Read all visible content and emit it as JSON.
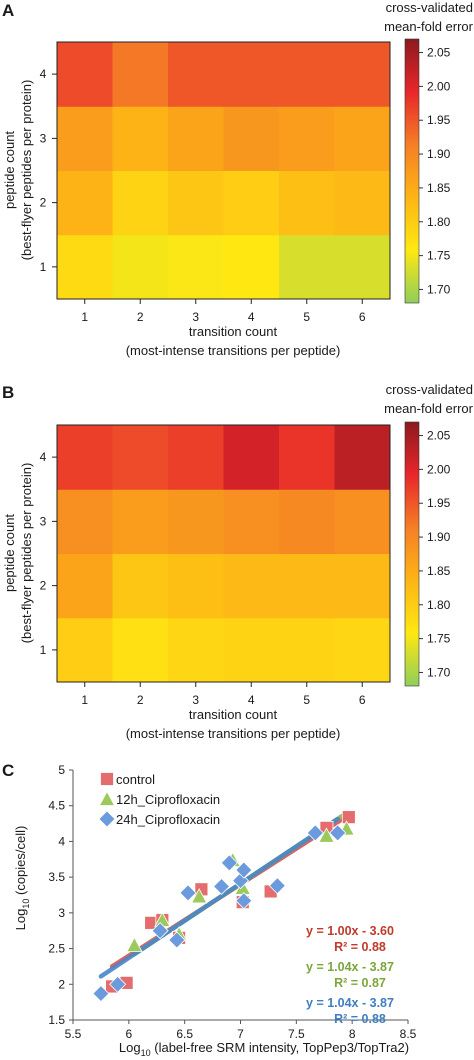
{
  "panels": [
    {
      "letter": "A",
      "chart_data": {
        "type": "heatmap",
        "x_categories": [
          "1",
          "2",
          "3",
          "4",
          "5",
          "6"
        ],
        "y_categories": [
          "1",
          "2",
          "3",
          "4"
        ],
        "values": [
          [
            1.78,
            1.75,
            1.755,
            1.76,
            1.73,
            1.73
          ],
          [
            1.84,
            1.79,
            1.81,
            1.8,
            1.82,
            1.83
          ],
          [
            1.87,
            1.84,
            1.86,
            1.88,
            1.87,
            1.86
          ],
          [
            1.96,
            1.92,
            1.95,
            1.95,
            1.95,
            1.95
          ]
        ],
        "xlabel": "transition count",
        "xlabel2": "(most-intense transitions per peptide)",
        "ylabel": "peptide count",
        "ylabel2": "(best-flyer peptides per protein)",
        "colorbar": {
          "title": "cross-validated",
          "title2": "mean-fold error",
          "ticks": [
            "1.70",
            "1.75",
            "1.80",
            "1.85",
            "1.90",
            "1.95",
            "2.00",
            "2.05"
          ],
          "range": [
            1.68,
            2.07
          ],
          "colors": [
            "#8fce5a",
            "#ffe812",
            "#fdb515",
            "#f57f25",
            "#e8262b",
            "#8c1a1e"
          ]
        }
      }
    },
    {
      "letter": "B",
      "chart_data": {
        "type": "heatmap",
        "x_categories": [
          "1",
          "2",
          "3",
          "4",
          "5",
          "6"
        ],
        "y_categories": [
          "1",
          "2",
          "3",
          "4"
        ],
        "values": [
          [
            1.8,
            1.77,
            1.785,
            1.79,
            1.79,
            1.785
          ],
          [
            1.86,
            1.81,
            1.82,
            1.83,
            1.83,
            1.83
          ],
          [
            1.89,
            1.87,
            1.88,
            1.89,
            1.9,
            1.89
          ],
          [
            1.97,
            1.96,
            1.97,
            2.01,
            1.98,
            2.03
          ]
        ],
        "xlabel": "transition count",
        "xlabel2": "(most-intense transitions per peptide)",
        "ylabel": "peptide count",
        "ylabel2": "(best-flyer peptides per protein)",
        "colorbar": {
          "title": "cross-validated",
          "title2": "mean-fold error",
          "ticks": [
            "1.70",
            "1.75",
            "1.80",
            "1.85",
            "1.90",
            "1.95",
            "2.00",
            "2.05"
          ],
          "range": [
            1.68,
            2.07
          ],
          "colors": [
            "#8fce5a",
            "#ffe812",
            "#fdb515",
            "#f57f25",
            "#e8262b",
            "#8c1a1e"
          ]
        }
      }
    },
    {
      "letter": "C",
      "chart_data": {
        "type": "scatter",
        "xlabel_prefix": "Log",
        "xlabel_sub": "10",
        "xlabel_rest": " (label-free SRM intensity, TopPep3/TopTra2)",
        "ylabel_prefix": "Log",
        "ylabel_sub": "10",
        "ylabel_rest": " (copies/cell)",
        "xlim": [
          5.5,
          8.5
        ],
        "ylim": [
          1.5,
          5
        ],
        "x_ticks": [
          "5.5",
          "6",
          "6.5",
          "7",
          "7.5",
          "8",
          "8.5"
        ],
        "y_ticks": [
          "1.5",
          "2",
          "2.5",
          "3",
          "3.5",
          "4",
          "4.5",
          "5"
        ],
        "series": [
          {
            "name": "control",
            "marker": "square",
            "color": "#e46c6c",
            "line_color": "#d9534f",
            "fit": [
              1.0,
              -3.6
            ],
            "equation": "y = 1.00x - 3.60",
            "r2": "R² = 0.88",
            "text_color": "#c0392b",
            "points": [
              [
                5.85,
                1.97
              ],
              [
                5.98,
                2.02
              ],
              [
                6.2,
                2.86
              ],
              [
                6.3,
                2.9
              ],
              [
                6.45,
                2.65
              ],
              [
                6.65,
                3.33
              ],
              [
                7.02,
                3.15
              ],
              [
                7.27,
                3.3
              ],
              [
                7.77,
                4.19
              ],
              [
                7.97,
                4.34
              ]
            ]
          },
          {
            "name": "12h_Ciprofloxacin",
            "marker": "triangle",
            "color": "#9bc95b",
            "line_color": "#8db552",
            "fit": [
              1.04,
              -3.87
            ],
            "equation": "y = 1.04x - 3.87",
            "r2": "R² = 0.87",
            "text_color": "#7ca63a",
            "points": [
              [
                6.05,
                2.55
              ],
              [
                6.3,
                2.9
              ],
              [
                6.45,
                2.7
              ],
              [
                6.63,
                3.23
              ],
              [
                6.93,
                3.74
              ],
              [
                7.02,
                3.35
              ],
              [
                7.77,
                4.08
              ],
              [
                7.95,
                4.18
              ]
            ]
          },
          {
            "name": "24h_Ciprofloxacin",
            "marker": "diamond",
            "color": "#6b9bdc",
            "line_color": "#4a86c8",
            "fit": [
              1.04,
              -3.87
            ],
            "equation": "y = 1.04x - 3.87",
            "r2": "R² = 0.88",
            "text_color": "#3f7ec2",
            "points": [
              [
                5.75,
                1.87
              ],
              [
                5.9,
                2.0
              ],
              [
                6.28,
                2.75
              ],
              [
                6.43,
                2.62
              ],
              [
                6.53,
                3.28
              ],
              [
                6.83,
                3.37
              ],
              [
                6.9,
                3.7
              ],
              [
                7.0,
                3.45
              ],
              [
                7.03,
                3.6
              ],
              [
                7.03,
                3.17
              ],
              [
                7.33,
                3.38
              ],
              [
                7.67,
                4.12
              ],
              [
                7.87,
                4.12
              ]
            ]
          }
        ]
      }
    }
  ]
}
